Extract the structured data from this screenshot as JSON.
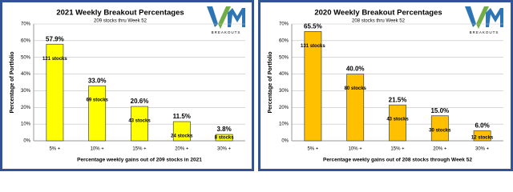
{
  "chart_data": [
    {
      "type": "bar",
      "title": "2021 Weekly Breakout Percentages",
      "subtitle": "209 stocks thru Week 52",
      "y_label": "Percentage of Portfolio",
      "x_label": "Percentage weekly gains out of 209 stocks in 2021",
      "logo_text": "BREAKOUTS",
      "categories": [
        "5% +",
        "10% +",
        "15% +",
        "20% +",
        "30% +"
      ],
      "values": [
        57.9,
        33.0,
        20.6,
        11.5,
        3.8
      ],
      "value_labels": [
        "57.9%",
        "33.0%",
        "20.6%",
        "11.5%",
        "3.8%"
      ],
      "bar_annotations": [
        "121 stocks",
        "69 stocks",
        "43 stocks",
        "24 stocks",
        "8 stocks"
      ],
      "color": "#ffff00",
      "ylim": [
        0,
        70
      ],
      "yticks": [
        {
          "value": 0,
          "label": "0%"
        },
        {
          "value": 10,
          "label": "10%"
        },
        {
          "value": 20,
          "label": "20%"
        },
        {
          "value": 30,
          "label": "30%"
        },
        {
          "value": 40,
          "label": "40%"
        },
        {
          "value": 50,
          "label": "50%"
        },
        {
          "value": 60,
          "label": "60%"
        },
        {
          "value": 70,
          "label": "70%"
        }
      ],
      "grid": true
    },
    {
      "type": "bar",
      "title": "2020 Weekly Breakout Percentages",
      "subtitle": "208 stocks thru Week 52",
      "y_label": "Percentage of Portfolio",
      "x_label": "Percentage weekly gains out of 208 stocks through Week 52",
      "logo_text": "BREAKOUTS",
      "categories": [
        "5% +",
        "10% +",
        "15% +",
        "20% +",
        "30% +"
      ],
      "values": [
        65.5,
        40.0,
        21.5,
        15.0,
        6.0
      ],
      "value_labels": [
        "65.5%",
        "40.0%",
        "21.5%",
        "15.0%",
        "6.0%"
      ],
      "bar_annotations": [
        "131 stocks",
        "80 stocks",
        "43 stocks",
        "30 stocks",
        "12 stocks"
      ],
      "color": "#ffc000",
      "ylim": [
        0,
        70
      ],
      "yticks": [
        {
          "value": 0,
          "label": "0%"
        },
        {
          "value": 10,
          "label": "10%"
        },
        {
          "value": 20,
          "label": "20%"
        },
        {
          "value": 30,
          "label": "30%"
        },
        {
          "value": 40,
          "label": "40%"
        },
        {
          "value": 50,
          "label": "50%"
        },
        {
          "value": 60,
          "label": "60%"
        },
        {
          "value": 70,
          "label": "70%"
        }
      ],
      "grid": true
    }
  ]
}
